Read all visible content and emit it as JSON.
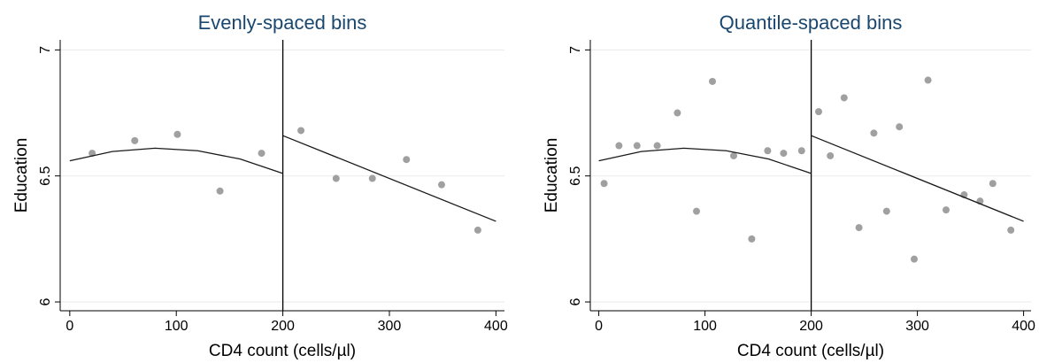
{
  "chart_data": [
    {
      "type": "scatter",
      "title": "Evenly-spaced bins",
      "x_label": "CD4 count (cells/µl)",
      "y_label": "Education",
      "xlim": [
        -9,
        408
      ],
      "ylim": [
        5.965,
        7.04
      ],
      "xticks": [
        0,
        100,
        200,
        300,
        400
      ],
      "yticks": [
        6,
        6.5,
        7
      ],
      "grid": true,
      "vline": 200,
      "series": [
        {
          "type": "scatter",
          "color": "#a0a0a0",
          "x": [
            21,
            61,
            101,
            141,
            180,
            217,
            250,
            284,
            316,
            349,
            383
          ],
          "values": [
            6.59,
            6.64,
            6.665,
            6.44,
            6.59,
            6.68,
            6.49,
            6.49,
            6.565,
            6.465,
            6.285
          ]
        },
        {
          "type": "line",
          "color": "#1a1a1a",
          "x": [
            0,
            40,
            80,
            120,
            160,
            200
          ],
          "values": [
            6.56,
            6.597,
            6.61,
            6.6,
            6.567,
            6.51
          ]
        },
        {
          "type": "line",
          "color": "#1a1a1a",
          "x": [
            200,
            400
          ],
          "values": [
            6.66,
            6.32
          ]
        }
      ]
    },
    {
      "type": "scatter",
      "title": "Quantile-spaced bins",
      "x_label": "CD4 count (cells/µl)",
      "y_label": "Education",
      "xlim": [
        -8,
        407
      ],
      "ylim": [
        5.965,
        7.04
      ],
      "xticks": [
        0,
        100,
        200,
        300,
        400
      ],
      "yticks": [
        6,
        6.5,
        7
      ],
      "grid": true,
      "vline": 200,
      "series": [
        {
          "type": "scatter",
          "color": "#a0a0a0",
          "x": [
            5,
            19,
            36,
            55,
            74,
            92,
            107,
            127,
            144,
            159,
            174,
            191,
            207,
            218,
            231,
            245,
            259,
            271,
            283,
            297,
            310,
            327,
            344,
            359,
            371,
            388
          ],
          "values": [
            6.47,
            6.62,
            6.62,
            6.62,
            6.75,
            6.36,
            6.875,
            6.58,
            6.25,
            6.6,
            6.59,
            6.6,
            6.755,
            6.58,
            6.81,
            6.295,
            6.67,
            6.36,
            6.695,
            6.17,
            6.88,
            6.365,
            6.425,
            6.4,
            6.47,
            6.285
          ]
        },
        {
          "type": "line",
          "color": "#1a1a1a",
          "x": [
            0,
            40,
            80,
            120,
            160,
            200
          ],
          "values": [
            6.56,
            6.597,
            6.61,
            6.6,
            6.567,
            6.51
          ]
        },
        {
          "type": "line",
          "color": "#1a1a1a",
          "x": [
            200,
            400
          ],
          "values": [
            6.66,
            6.32
          ]
        }
      ]
    }
  ]
}
